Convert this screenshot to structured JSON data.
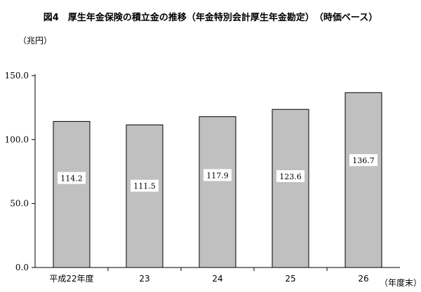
{
  "chart_data": {
    "type": "bar",
    "title": "図4　厚生年金保険の積立金の推移（年金特別会計厚生年金勘定）　（時価ベース）",
    "ylabel": "（兆円）",
    "xlabel": "（年度末）",
    "categories": [
      "平成22年度",
      "23",
      "24",
      "25",
      "26"
    ],
    "values": [
      114.2,
      111.5,
      117.9,
      123.6,
      136.7
    ],
    "data_labels": [
      "114.2",
      "111.5",
      "117.9",
      "123.6",
      "136.7"
    ],
    "ylim": [
      0,
      150
    ],
    "yticks": [
      0,
      50,
      100,
      150
    ],
    "ytick_labels": [
      "0.0",
      "50.0",
      "100.0",
      "150.0"
    ],
    "grid": false,
    "legend": "none",
    "colors": {
      "bar_fill": "#c0c0c0",
      "bar_stroke": "#000000",
      "axis": "#000000"
    }
  }
}
